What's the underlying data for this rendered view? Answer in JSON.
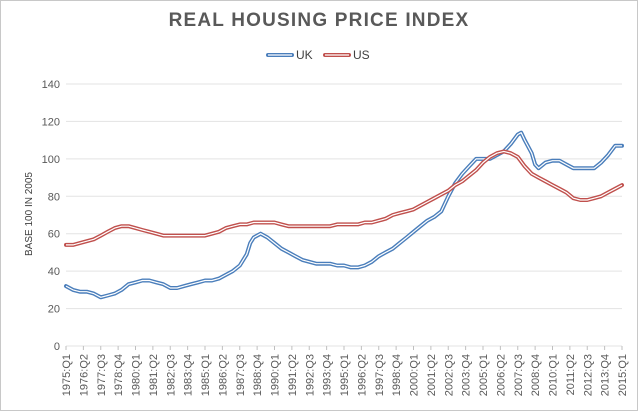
{
  "chart_data": {
    "type": "line",
    "title": "REAL HOUSING PRICE INDEX",
    "xlabel": "",
    "ylabel": "BASE 100 IN 2005",
    "ylim": [
      0,
      140
    ],
    "yticks": [
      0,
      20,
      40,
      60,
      80,
      100,
      120,
      140
    ],
    "grid": true,
    "legend_position": "top",
    "x_tick_labels": [
      "1975:Q1",
      "1976:Q2",
      "1977:Q3",
      "1978:Q4",
      "1980:Q1",
      "1981:Q2",
      "1982:Q3",
      "1983:Q4",
      "1985:Q1",
      "1986:Q2",
      "1987:Q3",
      "1988:Q4",
      "1990:Q1",
      "1991:Q2",
      "1992:Q3",
      "1993:Q4",
      "1995:Q1",
      "1996:Q2",
      "1997:Q3",
      "1998:Q4",
      "2000:Q1",
      "2001:Q2",
      "2002:Q3",
      "2003:Q4",
      "2005:Q1",
      "2006:Q2",
      "2007:Q3",
      "2008:Q4",
      "2010:Q1",
      "2011:Q2",
      "2012:Q3",
      "2013:Q4",
      "2015:Q1"
    ],
    "x_start_year": 1975,
    "x_end_year": 2015,
    "series": [
      {
        "name": "UK",
        "color": "#4a7ebb",
        "points": [
          [
            1975.0,
            32
          ],
          [
            1975.5,
            30
          ],
          [
            1976.0,
            29
          ],
          [
            1976.5,
            29
          ],
          [
            1977.0,
            28
          ],
          [
            1977.5,
            26
          ],
          [
            1978.0,
            27
          ],
          [
            1978.5,
            28
          ],
          [
            1979.0,
            30
          ],
          [
            1979.5,
            33
          ],
          [
            1980.0,
            34
          ],
          [
            1980.5,
            35
          ],
          [
            1981.0,
            35
          ],
          [
            1981.5,
            34
          ],
          [
            1982.0,
            33
          ],
          [
            1982.5,
            31
          ],
          [
            1983.0,
            31
          ],
          [
            1983.5,
            32
          ],
          [
            1984.0,
            33
          ],
          [
            1984.5,
            34
          ],
          [
            1985.0,
            35
          ],
          [
            1985.5,
            35
          ],
          [
            1986.0,
            36
          ],
          [
            1986.5,
            38
          ],
          [
            1987.0,
            40
          ],
          [
            1987.5,
            43
          ],
          [
            1988.0,
            49
          ],
          [
            1988.25,
            55
          ],
          [
            1988.5,
            58
          ],
          [
            1989.0,
            60
          ],
          [
            1989.5,
            58
          ],
          [
            1990.0,
            55
          ],
          [
            1990.5,
            52
          ],
          [
            1991.0,
            50
          ],
          [
            1991.5,
            48
          ],
          [
            1992.0,
            46
          ],
          [
            1992.5,
            45
          ],
          [
            1993.0,
            44
          ],
          [
            1993.5,
            44
          ],
          [
            1994.0,
            44
          ],
          [
            1994.5,
            43
          ],
          [
            1995.0,
            43
          ],
          [
            1995.5,
            42
          ],
          [
            1996.0,
            42
          ],
          [
            1996.5,
            43
          ],
          [
            1997.0,
            45
          ],
          [
            1997.5,
            48
          ],
          [
            1998.0,
            50
          ],
          [
            1998.5,
            52
          ],
          [
            1999.0,
            55
          ],
          [
            1999.5,
            58
          ],
          [
            2000.0,
            61
          ],
          [
            2000.5,
            64
          ],
          [
            2001.0,
            67
          ],
          [
            2001.5,
            69
          ],
          [
            2002.0,
            72
          ],
          [
            2002.5,
            80
          ],
          [
            2003.0,
            87
          ],
          [
            2003.5,
            92
          ],
          [
            2004.0,
            96
          ],
          [
            2004.5,
            100
          ],
          [
            2005.0,
            100
          ],
          [
            2005.5,
            100
          ],
          [
            2006.0,
            102
          ],
          [
            2006.5,
            104
          ],
          [
            2007.0,
            108
          ],
          [
            2007.5,
            113
          ],
          [
            2007.75,
            114
          ],
          [
            2008.0,
            110
          ],
          [
            2008.5,
            103
          ],
          [
            2008.75,
            97
          ],
          [
            2009.0,
            95
          ],
          [
            2009.5,
            98
          ],
          [
            2010.0,
            99
          ],
          [
            2010.5,
            99
          ],
          [
            2011.0,
            97
          ],
          [
            2011.5,
            95
          ],
          [
            2012.0,
            95
          ],
          [
            2012.5,
            95
          ],
          [
            2013.0,
            95
          ],
          [
            2013.5,
            98
          ],
          [
            2014.0,
            102
          ],
          [
            2014.5,
            107
          ],
          [
            2015.0,
            107
          ]
        ]
      },
      {
        "name": "US",
        "color": "#c0504d",
        "points": [
          [
            1975.0,
            54
          ],
          [
            1975.5,
            54
          ],
          [
            1976.0,
            55
          ],
          [
            1976.5,
            56
          ],
          [
            1977.0,
            57
          ],
          [
            1977.5,
            59
          ],
          [
            1978.0,
            61
          ],
          [
            1978.5,
            63
          ],
          [
            1979.0,
            64
          ],
          [
            1979.5,
            64
          ],
          [
            1980.0,
            63
          ],
          [
            1980.5,
            62
          ],
          [
            1981.0,
            61
          ],
          [
            1981.5,
            60
          ],
          [
            1982.0,
            59
          ],
          [
            1982.5,
            59
          ],
          [
            1983.0,
            59
          ],
          [
            1983.5,
            59
          ],
          [
            1984.0,
            59
          ],
          [
            1984.5,
            59
          ],
          [
            1985.0,
            59
          ],
          [
            1985.5,
            60
          ],
          [
            1986.0,
            61
          ],
          [
            1986.5,
            63
          ],
          [
            1987.0,
            64
          ],
          [
            1987.5,
            65
          ],
          [
            1988.0,
            65
          ],
          [
            1988.5,
            66
          ],
          [
            1989.0,
            66
          ],
          [
            1989.5,
            66
          ],
          [
            1990.0,
            66
          ],
          [
            1990.5,
            65
          ],
          [
            1991.0,
            64
          ],
          [
            1991.5,
            64
          ],
          [
            1992.0,
            64
          ],
          [
            1992.5,
            64
          ],
          [
            1993.0,
            64
          ],
          [
            1993.5,
            64
          ],
          [
            1994.0,
            64
          ],
          [
            1994.5,
            65
          ],
          [
            1995.0,
            65
          ],
          [
            1995.5,
            65
          ],
          [
            1996.0,
            65
          ],
          [
            1996.5,
            66
          ],
          [
            1997.0,
            66
          ],
          [
            1997.5,
            67
          ],
          [
            1998.0,
            68
          ],
          [
            1998.5,
            70
          ],
          [
            1999.0,
            71
          ],
          [
            1999.5,
            72
          ],
          [
            2000.0,
            73
          ],
          [
            2000.5,
            75
          ],
          [
            2001.0,
            77
          ],
          [
            2001.5,
            79
          ],
          [
            2002.0,
            81
          ],
          [
            2002.5,
            83
          ],
          [
            2003.0,
            86
          ],
          [
            2003.5,
            88
          ],
          [
            2004.0,
            91
          ],
          [
            2004.5,
            94
          ],
          [
            2005.0,
            98
          ],
          [
            2005.5,
            101
          ],
          [
            2006.0,
            103
          ],
          [
            2006.5,
            104
          ],
          [
            2007.0,
            103
          ],
          [
            2007.5,
            101
          ],
          [
            2008.0,
            96
          ],
          [
            2008.5,
            92
          ],
          [
            2009.0,
            90
          ],
          [
            2009.5,
            88
          ],
          [
            2010.0,
            86
          ],
          [
            2010.5,
            84
          ],
          [
            2011.0,
            82
          ],
          [
            2011.5,
            79
          ],
          [
            2012.0,
            78
          ],
          [
            2012.5,
            78
          ],
          [
            2013.0,
            79
          ],
          [
            2013.5,
            80
          ],
          [
            2014.0,
            82
          ],
          [
            2014.5,
            84
          ],
          [
            2015.0,
            86
          ]
        ]
      }
    ]
  }
}
